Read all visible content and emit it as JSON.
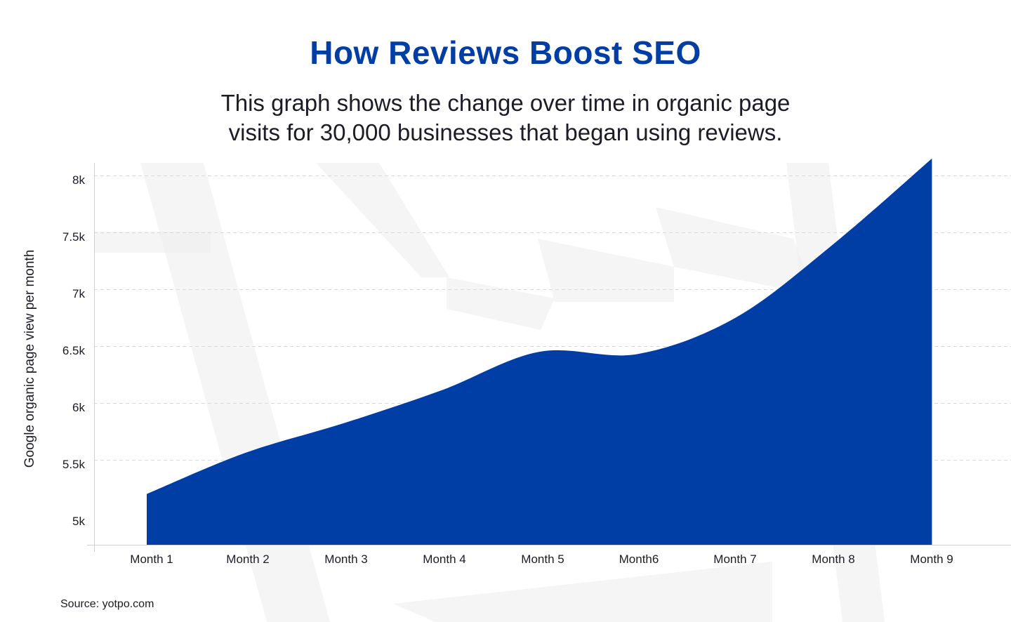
{
  "colors": {
    "title": "#003da5",
    "area": "#003da5",
    "text": "#1c1c28",
    "grid": "#d9d9d9",
    "axis": "#d0d0d0",
    "watermark": "#ececee"
  },
  "chart_data": {
    "type": "area",
    "title": "How Reviews Boost SEO",
    "subtitle_lines": [
      "This graph shows the change over time in organic page",
      "visits for 30,000 businesses that began using reviews."
    ],
    "xlabel": "",
    "ylabel": "Google organic page view per month",
    "categories": [
      "Month 1",
      "Month 2",
      "Month 3",
      "Month 4",
      "Month 5",
      "Month6",
      "Month 7",
      "Month 8",
      "Month 9"
    ],
    "values": [
      5200,
      5560,
      5820,
      6110,
      6450,
      6430,
      6750,
      7400,
      8150
    ],
    "y_ticks": [
      {
        "value": 5000,
        "label": "5k"
      },
      {
        "value": 5500,
        "label": "5.5k"
      },
      {
        "value": 6000,
        "label": "6k"
      },
      {
        "value": 6500,
        "label": "6.5k"
      },
      {
        "value": 7000,
        "label": "7k"
      },
      {
        "value": 7500,
        "label": "7.5k"
      },
      {
        "value": 8000,
        "label": "8k"
      }
    ],
    "ylim": [
      4800,
      8250
    ],
    "grid": "dashed horizontal",
    "legend": "none",
    "source": "Source: yotpo.com"
  }
}
